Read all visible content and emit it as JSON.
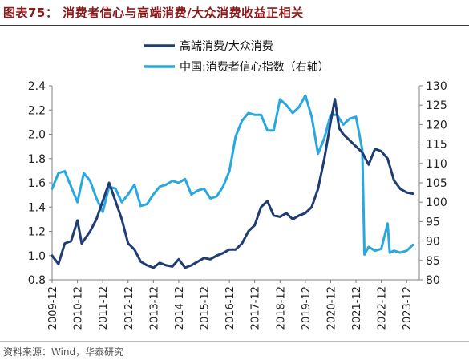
{
  "title": "图表75： 消费者信心与高端消费/大众消费收益正相关",
  "source": "资料来源：Wind，华泰研究",
  "colors": {
    "navy": "#1f3c73",
    "sky": "#29a8e0",
    "title": "#8b1a1a"
  },
  "chart_data": {
    "type": "line",
    "legend_position": "top",
    "grid": false,
    "x_tick_labels": [
      "2009-12",
      "2010-12",
      "2011-12",
      "2012-12",
      "2013-12",
      "2014-12",
      "2015-12",
      "2016-12",
      "2017-12",
      "2018-12",
      "2019-12",
      "2020-12",
      "2021-12",
      "2022-12",
      "2023-12"
    ],
    "x_range": [
      "2009-12",
      "2024-06"
    ],
    "y_left": {
      "ticks": [
        "0.8",
        "1.0",
        "1.2",
        "1.4",
        "1.6",
        "1.8",
        "2.0",
        "2.2",
        "2.4"
      ],
      "range": [
        0.8,
        2.4
      ]
    },
    "y_right": {
      "ticks": [
        "80",
        "85",
        "90",
        "95",
        "100",
        "105",
        "110",
        "115",
        "120",
        "125",
        "130"
      ],
      "range": [
        80,
        130
      ]
    },
    "series": [
      {
        "name": "高端消费/大众消费",
        "axis": "left",
        "points": [
          [
            "2009-12",
            1.0
          ],
          [
            "2010-03",
            0.93
          ],
          [
            "2010-06",
            1.1
          ],
          [
            "2010-09",
            1.12
          ],
          [
            "2010-12",
            1.29
          ],
          [
            "2011-02",
            1.1
          ],
          [
            "2011-06",
            1.2
          ],
          [
            "2011-09",
            1.3
          ],
          [
            "2011-12",
            1.45
          ],
          [
            "2012-03",
            1.6
          ],
          [
            "2012-06",
            1.45
          ],
          [
            "2012-09",
            1.3
          ],
          [
            "2012-12",
            1.1
          ],
          [
            "2013-03",
            1.05
          ],
          [
            "2013-06",
            0.95
          ],
          [
            "2013-09",
            0.92
          ],
          [
            "2013-12",
            0.9
          ],
          [
            "2014-03",
            0.94
          ],
          [
            "2014-06",
            0.92
          ],
          [
            "2014-09",
            0.91
          ],
          [
            "2014-12",
            0.97
          ],
          [
            "2015-03",
            0.9
          ],
          [
            "2015-06",
            0.92
          ],
          [
            "2015-09",
            0.95
          ],
          [
            "2015-12",
            0.98
          ],
          [
            "2016-03",
            0.97
          ],
          [
            "2016-06",
            1.0
          ],
          [
            "2016-09",
            1.02
          ],
          [
            "2016-12",
            1.05
          ],
          [
            "2017-03",
            1.05
          ],
          [
            "2017-06",
            1.1
          ],
          [
            "2017-09",
            1.2
          ],
          [
            "2017-12",
            1.25
          ],
          [
            "2018-03",
            1.4
          ],
          [
            "2018-06",
            1.45
          ],
          [
            "2018-09",
            1.33
          ],
          [
            "2018-12",
            1.32
          ],
          [
            "2019-03",
            1.35
          ],
          [
            "2019-06",
            1.3
          ],
          [
            "2019-09",
            1.33
          ],
          [
            "2019-12",
            1.35
          ],
          [
            "2020-03",
            1.4
          ],
          [
            "2020-06",
            1.55
          ],
          [
            "2020-09",
            1.8
          ],
          [
            "2020-12",
            2.1
          ],
          [
            "2021-02",
            2.29
          ],
          [
            "2021-04",
            2.05
          ],
          [
            "2021-06",
            2.0
          ],
          [
            "2021-09",
            1.95
          ],
          [
            "2021-12",
            1.9
          ],
          [
            "2022-03",
            1.85
          ],
          [
            "2022-06",
            1.75
          ],
          [
            "2022-09",
            1.88
          ],
          [
            "2022-12",
            1.86
          ],
          [
            "2023-03",
            1.8
          ],
          [
            "2023-06",
            1.62
          ],
          [
            "2023-09",
            1.55
          ],
          [
            "2023-12",
            1.52
          ],
          [
            "2024-03",
            1.51
          ]
        ]
      },
      {
        "name": "中国:消费者信心指数（右轴）",
        "axis": "right",
        "points": [
          [
            "2009-12",
            103.5
          ],
          [
            "2010-03",
            107.5
          ],
          [
            "2010-06",
            108.0
          ],
          [
            "2010-09",
            104.0
          ],
          [
            "2010-12",
            100.0
          ],
          [
            "2011-03",
            107.5
          ],
          [
            "2011-06",
            105.5
          ],
          [
            "2011-09",
            101.0
          ],
          [
            "2011-12",
            97.5
          ],
          [
            "2012-03",
            104.0
          ],
          [
            "2012-06",
            103.5
          ],
          [
            "2012-09",
            100.0
          ],
          [
            "2012-12",
            102.0
          ],
          [
            "2013-03",
            104.5
          ],
          [
            "2013-06",
            99.0
          ],
          [
            "2013-09",
            99.5
          ],
          [
            "2013-12",
            102.0
          ],
          [
            "2014-03",
            104.0
          ],
          [
            "2014-06",
            104.5
          ],
          [
            "2014-09",
            105.5
          ],
          [
            "2014-12",
            105.0
          ],
          [
            "2015-03",
            106.0
          ],
          [
            "2015-06",
            102.0
          ],
          [
            "2015-09",
            103.0
          ],
          [
            "2015-12",
            103.5
          ],
          [
            "2016-03",
            101.0
          ],
          [
            "2016-06",
            101.5
          ],
          [
            "2016-09",
            104.0
          ],
          [
            "2016-12",
            108.0
          ],
          [
            "2017-03",
            117.0
          ],
          [
            "2017-06",
            121.0
          ],
          [
            "2017-09",
            123.0
          ],
          [
            "2017-12",
            122.5
          ],
          [
            "2018-03",
            122.5
          ],
          [
            "2018-06",
            118.5
          ],
          [
            "2018-09",
            118.5
          ],
          [
            "2018-12",
            126.5
          ],
          [
            "2019-03",
            125.0
          ],
          [
            "2019-06",
            123.0
          ],
          [
            "2019-09",
            124.5
          ],
          [
            "2019-12",
            127.5
          ],
          [
            "2020-03",
            122.0
          ],
          [
            "2020-06",
            112.5
          ],
          [
            "2020-09",
            116.5
          ],
          [
            "2020-12",
            122.5
          ],
          [
            "2021-03",
            122.5
          ],
          [
            "2021-06",
            120.0
          ],
          [
            "2021-09",
            121.5
          ],
          [
            "2021-12",
            122.0
          ],
          [
            "2022-03",
            113.5
          ],
          [
            "2022-04",
            86.5
          ],
          [
            "2022-06",
            88.5
          ],
          [
            "2022-09",
            87.5
          ],
          [
            "2022-12",
            88.0
          ],
          [
            "2023-03",
            94.5
          ],
          [
            "2023-04",
            87.0
          ],
          [
            "2023-06",
            87.5
          ],
          [
            "2023-09",
            87.0
          ],
          [
            "2023-12",
            87.5
          ],
          [
            "2024-03",
            89.0
          ]
        ]
      }
    ]
  }
}
